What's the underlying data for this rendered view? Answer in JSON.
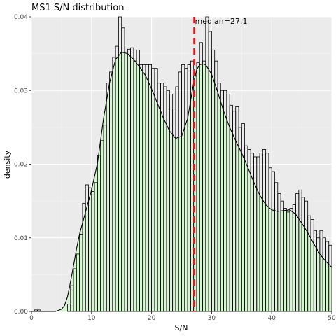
{
  "chart_data": {
    "type": "bar",
    "title": "MS1 S/N distribution",
    "xlabel": "S/N",
    "ylabel": "density",
    "xlim": [
      0,
      50
    ],
    "ylim": [
      0,
      0.04
    ],
    "x_ticks": [
      0,
      10,
      20,
      30,
      40,
      50
    ],
    "y_ticks": [
      0.0,
      0.01,
      0.02,
      0.03,
      0.04
    ],
    "x_tick_labels": [
      "0",
      "10",
      "20",
      "30",
      "40",
      "50"
    ],
    "y_tick_labels": [
      "0.00",
      "0.01",
      "0.02",
      "0.03",
      "0.04"
    ],
    "grid": true,
    "bin_width": 0.5,
    "histogram": {
      "bin_starts": [
        0.5,
        1.0,
        1.5,
        2.0,
        2.5,
        3.0,
        3.5,
        4.0,
        4.5,
        5.0,
        5.5,
        6.0,
        6.5,
        7.0,
        7.5,
        8.0,
        8.5,
        9.0,
        9.5,
        10.0,
        10.5,
        11.0,
        11.5,
        12.0,
        12.5,
        13.0,
        13.5,
        14.0,
        14.5,
        15.0,
        15.5,
        16.0,
        16.5,
        17.0,
        17.5,
        18.0,
        18.5,
        19.0,
        19.5,
        20.0,
        20.5,
        21.0,
        21.5,
        22.0,
        22.5,
        23.0,
        23.5,
        24.0,
        24.5,
        25.0,
        25.5,
        26.0,
        26.5,
        27.0,
        27.5,
        28.0,
        28.5,
        29.0,
        29.5,
        30.0,
        30.5,
        31.0,
        31.5,
        32.0,
        32.5,
        33.0,
        33.5,
        34.0,
        34.5,
        35.0,
        35.5,
        36.0,
        36.5,
        37.0,
        37.5,
        38.0,
        38.5,
        39.0,
        39.5,
        40.0,
        40.5,
        41.0,
        41.5,
        42.0,
        42.5,
        43.0,
        43.5,
        44.0,
        44.5,
        45.0,
        45.5,
        46.0,
        46.5,
        47.0,
        47.5,
        48.0,
        48.5,
        49.0,
        49.5
      ],
      "densities": [
        0.0002,
        0.0002,
        0.0,
        0.0,
        0.0,
        0.0,
        0.0,
        0.0,
        0.0,
        0.0,
        0.0,
        0.001,
        0.0035,
        0.0058,
        0.0078,
        0.0105,
        0.0147,
        0.0172,
        0.0168,
        0.0163,
        0.0175,
        0.0212,
        0.0232,
        0.0253,
        0.031,
        0.0325,
        0.0345,
        0.036,
        0.04,
        0.0385,
        0.0355,
        0.0356,
        0.0358,
        0.034,
        0.0355,
        0.0335,
        0.0335,
        0.0335,
        0.0335,
        0.033,
        0.033,
        0.031,
        0.031,
        0.0305,
        0.03,
        0.0295,
        0.0275,
        0.0305,
        0.0325,
        0.0335,
        0.033,
        0.0335,
        0.034,
        0.032,
        0.0338,
        0.0365,
        0.034,
        0.04,
        0.038,
        0.0355,
        0.034,
        0.031,
        0.03,
        0.03,
        0.0295,
        0.028,
        0.0272,
        0.0278,
        0.025,
        0.0255,
        0.0225,
        0.022,
        0.0215,
        0.021,
        0.021,
        0.0215,
        0.022,
        0.0215,
        0.0195,
        0.019,
        0.0175,
        0.016,
        0.015,
        0.014,
        0.0135,
        0.014,
        0.0145,
        0.016,
        0.0165,
        0.0155,
        0.015,
        0.013,
        0.0125,
        0.011,
        0.01,
        0.011,
        0.01,
        0.0095,
        0.009,
        0.0085
      ]
    },
    "density_curve": {
      "x": [
        0,
        1,
        2,
        3,
        4,
        5,
        5.5,
        6,
        6.5,
        7,
        7.5,
        8,
        9,
        10,
        11,
        12,
        13,
        14,
        15,
        16,
        17,
        18,
        19,
        20,
        21,
        22,
        23,
        24,
        25,
        26,
        27,
        27.5,
        28,
        28.5,
        29,
        30,
        31,
        32,
        33,
        34,
        35,
        36,
        37,
        38,
        39,
        40,
        41,
        42,
        43,
        44,
        45,
        46,
        47,
        48,
        49,
        50
      ],
      "y": [
        0.0,
        0.0,
        0.0,
        0.0,
        0.0,
        0.0003,
        0.0008,
        0.002,
        0.004,
        0.0062,
        0.0085,
        0.0105,
        0.0135,
        0.0165,
        0.0202,
        0.0262,
        0.031,
        0.0342,
        0.0352,
        0.035,
        0.0342,
        0.0332,
        0.032,
        0.0302,
        0.0282,
        0.0262,
        0.0245,
        0.0235,
        0.0238,
        0.0262,
        0.031,
        0.0328,
        0.0335,
        0.0336,
        0.0335,
        0.0322,
        0.0298,
        0.0272,
        0.025,
        0.0232,
        0.0215,
        0.0196,
        0.0176,
        0.0158,
        0.0145,
        0.0138,
        0.0136,
        0.0137,
        0.0138,
        0.0132,
        0.012,
        0.0107,
        0.0092,
        0.0078,
        0.0068,
        0.006
      ]
    },
    "median": 27.1,
    "median_label": "median=27.1",
    "colors": {
      "bar_fill": "#ffffff",
      "density_fill": "#d8f5d3",
      "median_line": "#e41a1c",
      "panel_background": "#ebebeb"
    }
  }
}
